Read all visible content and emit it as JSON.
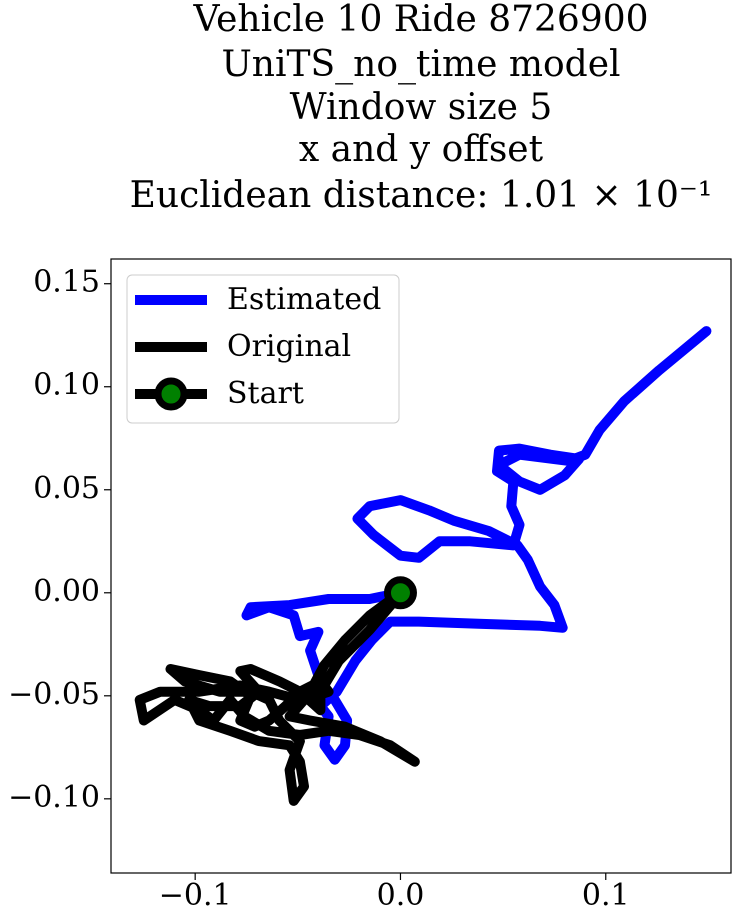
{
  "chart_data": {
    "type": "line",
    "title": [
      "Vehicle 10 Ride 8726900",
      "UniTS_no_time model",
      "Window size 5",
      "x and y offset",
      "Euclidean distance: 1.01 × 10⁻¹"
    ],
    "xlim": [
      -0.141,
      0.161
    ],
    "ylim": [
      -0.136,
      0.162
    ],
    "xticks": [
      {
        "value": -0.1,
        "label": "−0.1"
      },
      {
        "value": 0.0,
        "label": "0.0"
      },
      {
        "value": 0.1,
        "label": "0.1"
      }
    ],
    "yticks": [
      {
        "value": -0.1,
        "label": "−0.10"
      },
      {
        "value": -0.05,
        "label": "−0.05"
      },
      {
        "value": 0.0,
        "label": "0.00"
      },
      {
        "value": 0.05,
        "label": "0.05"
      },
      {
        "value": 0.1,
        "label": "0.10"
      },
      0.15
    ],
    "legend": "upper left",
    "grid": false,
    "series": [
      {
        "name": "Estimated",
        "color": "#0000ff",
        "x": [
          0,
          -0.015,
          -0.035,
          -0.054,
          -0.073,
          -0.075,
          -0.064,
          -0.052,
          -0.049,
          -0.04,
          -0.044,
          -0.039,
          -0.032,
          -0.026,
          -0.027,
          -0.032,
          -0.037,
          -0.035,
          -0.039,
          -0.031,
          -0.022,
          -0.014,
          -0.005,
          0.009,
          0.038,
          0.068,
          0.079,
          0.075,
          0.068,
          0.062,
          0.057,
          0.043,
          0.026,
          0.014,
          0.0,
          -0.015,
          -0.021,
          -0.013,
          0.0,
          0.009,
          0.019,
          0.034,
          0.055,
          0.058,
          0.054,
          0.055,
          0.047,
          0.048,
          0.058,
          0.073,
          0.087,
          0.08,
          0.068,
          0.058,
          0.048,
          0.058,
          0.082,
          0.09,
          0.097,
          0.109,
          0.126,
          0.149
        ],
        "values": [
          0,
          -0.003,
          -0.003,
          -0.006,
          -0.007,
          -0.011,
          -0.007,
          -0.011,
          -0.021,
          -0.019,
          -0.028,
          -0.043,
          -0.052,
          -0.062,
          -0.074,
          -0.081,
          -0.074,
          -0.06,
          -0.055,
          -0.048,
          -0.033,
          -0.023,
          -0.014,
          -0.014,
          -0.015,
          -0.016,
          -0.017,
          -0.006,
          0.003,
          0.016,
          0.023,
          0.03,
          0.035,
          0.04,
          0.045,
          0.042,
          0.036,
          0.028,
          0.018,
          0.017,
          0.025,
          0.025,
          0.023,
          0.033,
          0.042,
          0.054,
          0.059,
          0.069,
          0.07,
          0.067,
          0.065,
          0.057,
          0.05,
          0.054,
          0.062,
          0.067,
          0.064,
          0.067,
          0.079,
          0.093,
          0.108,
          0.127
        ]
      },
      {
        "name": "Original",
        "color": "#000000",
        "x": [
          0,
          -0.015,
          -0.027,
          -0.037,
          -0.044,
          -0.049,
          -0.064,
          -0.078,
          -0.098,
          -0.117,
          -0.127,
          -0.125,
          -0.11,
          -0.098,
          -0.091,
          -0.083,
          -0.076,
          -0.064,
          -0.049,
          -0.035,
          -0.02,
          -0.005,
          0.007,
          -0.01,
          -0.027,
          -0.044,
          -0.054,
          -0.047,
          -0.035,
          -0.039,
          -0.049,
          -0.056,
          -0.064,
          -0.071,
          -0.078,
          -0.073,
          -0.083,
          -0.098,
          -0.112,
          -0.105,
          -0.088,
          -0.073,
          -0.064,
          -0.059,
          -0.049,
          -0.054,
          -0.052,
          -0.047,
          -0.049,
          -0.054,
          -0.069,
          -0.083,
          -0.098,
          -0.103,
          -0.093,
          -0.078,
          -0.069,
          -0.078,
          -0.073,
          -0.059,
          -0.049,
          -0.039,
          -0.039,
          -0.03,
          -0.015,
          -0.003
        ],
        "values": [
          0,
          -0.011,
          -0.023,
          -0.035,
          -0.048,
          -0.052,
          -0.048,
          -0.045,
          -0.048,
          -0.048,
          -0.052,
          -0.062,
          -0.052,
          -0.057,
          -0.062,
          -0.052,
          -0.06,
          -0.067,
          -0.069,
          -0.067,
          -0.069,
          -0.074,
          -0.082,
          -0.072,
          -0.065,
          -0.062,
          -0.06,
          -0.052,
          -0.048,
          -0.043,
          -0.048,
          -0.055,
          -0.062,
          -0.065,
          -0.062,
          -0.05,
          -0.043,
          -0.04,
          -0.037,
          -0.043,
          -0.048,
          -0.048,
          -0.052,
          -0.062,
          -0.072,
          -0.086,
          -0.101,
          -0.094,
          -0.082,
          -0.074,
          -0.072,
          -0.067,
          -0.062,
          -0.052,
          -0.055,
          -0.055,
          -0.048,
          -0.038,
          -0.037,
          -0.043,
          -0.048,
          -0.057,
          -0.048,
          -0.033,
          -0.018,
          -0.004
        ]
      },
      {
        "name": "Start",
        "color": "#000000",
        "marker_face_color": "#008000",
        "x": [
          0
        ],
        "values": [
          0
        ]
      }
    ]
  }
}
